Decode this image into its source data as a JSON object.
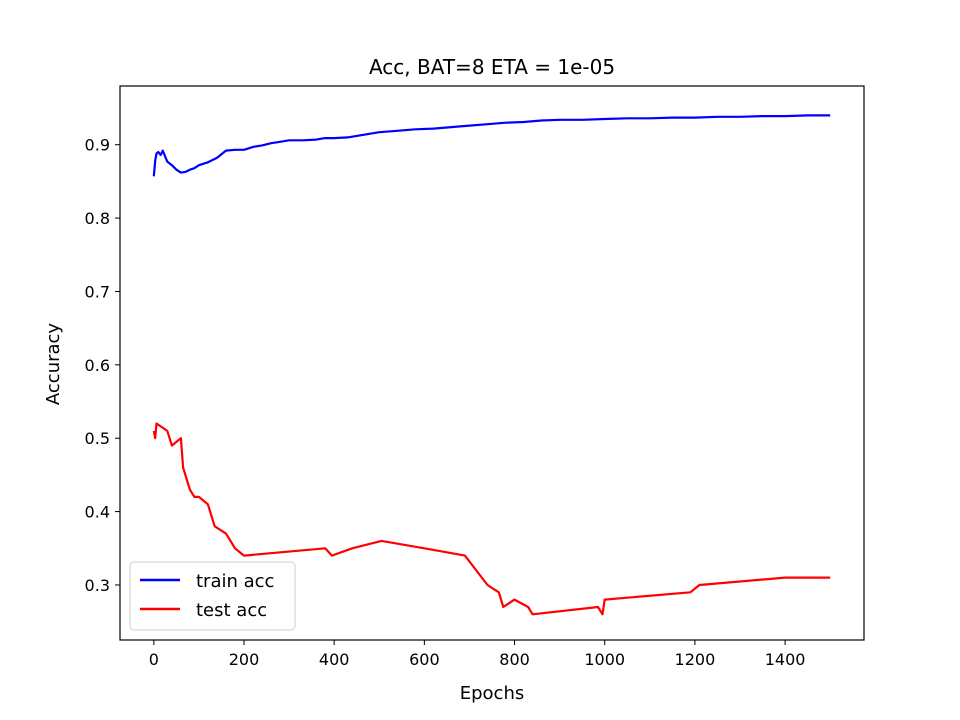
{
  "chart_data": {
    "type": "line",
    "title": "Acc, BAT=8 ETA = 1e-05",
    "xlabel": "Epochs",
    "ylabel": "Accuracy",
    "xlim": [
      -75,
      1575
    ],
    "ylim": [
      0.225,
      0.98
    ],
    "xticks": [
      0,
      200,
      400,
      600,
      800,
      1000,
      1200,
      1400
    ],
    "yticks": [
      0.3,
      0.4,
      0.5,
      0.6,
      0.7,
      0.8,
      0.9
    ],
    "ytick_labels": [
      "0.3",
      "0.4",
      "0.5",
      "0.6",
      "0.7",
      "0.8",
      "0.9"
    ],
    "grid": false,
    "legend_position": "lower-left",
    "series": [
      {
        "name": "train acc",
        "color": "#0000ff",
        "x": [
          0,
          3,
          6,
          10,
          15,
          20,
          25,
          30,
          40,
          50,
          60,
          70,
          80,
          90,
          100,
          120,
          140,
          160,
          180,
          200,
          220,
          240,
          260,
          280,
          300,
          330,
          360,
          380,
          400,
          430,
          460,
          500,
          540,
          580,
          620,
          660,
          700,
          740,
          780,
          820,
          860,
          900,
          950,
          1000,
          1050,
          1100,
          1150,
          1200,
          1250,
          1300,
          1350,
          1400,
          1450,
          1500
        ],
        "y": [
          0.857,
          0.878,
          0.888,
          0.89,
          0.886,
          0.892,
          0.884,
          0.877,
          0.872,
          0.866,
          0.862,
          0.863,
          0.866,
          0.868,
          0.872,
          0.876,
          0.882,
          0.892,
          0.893,
          0.893,
          0.897,
          0.899,
          0.902,
          0.904,
          0.906,
          0.906,
          0.907,
          0.909,
          0.909,
          0.91,
          0.913,
          0.917,
          0.919,
          0.921,
          0.922,
          0.924,
          0.926,
          0.928,
          0.93,
          0.931,
          0.933,
          0.934,
          0.934,
          0.935,
          0.936,
          0.936,
          0.937,
          0.937,
          0.938,
          0.938,
          0.939,
          0.939,
          0.94,
          0.94
        ]
      },
      {
        "name": "test acc",
        "color": "#ff0000",
        "x": [
          0,
          3,
          6,
          30,
          40,
          60,
          65,
          75,
          80,
          90,
          100,
          120,
          130,
          135,
          160,
          170,
          180,
          200,
          380,
          395,
          440,
          505,
          600,
          690,
          740,
          765,
          775,
          800,
          830,
          840,
          985,
          995,
          1000,
          1190,
          1210,
          1400,
          1500
        ],
        "y": [
          0.51,
          0.5,
          0.52,
          0.51,
          0.49,
          0.5,
          0.46,
          0.44,
          0.43,
          0.42,
          0.42,
          0.41,
          0.39,
          0.38,
          0.37,
          0.36,
          0.35,
          0.34,
          0.35,
          0.34,
          0.35,
          0.36,
          0.35,
          0.34,
          0.3,
          0.29,
          0.27,
          0.28,
          0.27,
          0.26,
          0.27,
          0.26,
          0.28,
          0.29,
          0.3,
          0.31,
          0.31
        ]
      }
    ]
  }
}
